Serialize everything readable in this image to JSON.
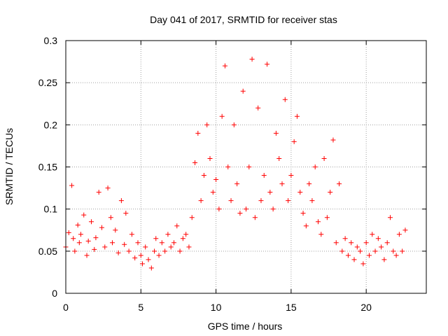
{
  "chart_data": {
    "type": "scatter",
    "title": "Day 041 of 2017, SRMTID for receiver stas",
    "xlabel": "GPS time / hours",
    "ylabel": "SRMTID / TECUs",
    "xlim": [
      0,
      24
    ],
    "ylim": [
      0,
      0.3
    ],
    "x_ticks": [
      0,
      5,
      10,
      15,
      20
    ],
    "x_tick_labels": [
      "0",
      "5",
      "10",
      "15",
      "20"
    ],
    "y_ticks": [
      0,
      0.05,
      0.1,
      0.15,
      0.2,
      0.25,
      0.3
    ],
    "y_tick_labels": [
      "0",
      "0.05",
      "0.1",
      "0.15",
      "0.2",
      "0.25",
      "0.3"
    ],
    "grid": true,
    "marker": "+",
    "series": [
      {
        "name": "stas",
        "color": "#ff0000",
        "x": [
          0.0,
          0.2,
          0.4,
          0.5,
          0.6,
          0.8,
          0.9,
          1.0,
          1.2,
          1.4,
          1.5,
          1.7,
          1.9,
          2.0,
          2.2,
          2.4,
          2.6,
          2.8,
          3.0,
          3.1,
          3.3,
          3.5,
          3.7,
          3.9,
          4.0,
          4.2,
          4.4,
          4.6,
          4.8,
          5.0,
          5.1,
          5.3,
          5.5,
          5.7,
          5.9,
          6.0,
          6.2,
          6.4,
          6.6,
          6.8,
          7.0,
          7.2,
          7.4,
          7.6,
          7.8,
          8.0,
          8.2,
          8.4,
          8.6,
          8.8,
          9.0,
          9.2,
          9.4,
          9.6,
          9.8,
          10.0,
          10.2,
          10.4,
          10.6,
          10.8,
          11.0,
          11.2,
          11.4,
          11.6,
          11.8,
          12.0,
          12.2,
          12.4,
          12.6,
          12.8,
          13.0,
          13.2,
          13.4,
          13.6,
          13.8,
          14.0,
          14.2,
          14.4,
          14.6,
          14.8,
          15.0,
          15.2,
          15.4,
          15.6,
          15.8,
          16.0,
          16.2,
          16.4,
          16.6,
          16.8,
          17.0,
          17.2,
          17.4,
          17.6,
          17.8,
          18.0,
          18.2,
          18.4,
          18.6,
          18.8,
          19.0,
          19.2,
          19.4,
          19.6,
          19.8,
          20.0,
          20.2,
          20.4,
          20.6,
          20.8,
          21.0,
          21.2,
          21.4,
          21.6,
          21.8,
          22.0,
          22.2,
          22.4,
          22.6
        ],
        "y": [
          0.055,
          0.072,
          0.128,
          0.065,
          0.05,
          0.081,
          0.06,
          0.07,
          0.093,
          0.045,
          0.062,
          0.085,
          0.052,
          0.066,
          0.12,
          0.078,
          0.055,
          0.125,
          0.09,
          0.06,
          0.075,
          0.048,
          0.11,
          0.058,
          0.095,
          0.05,
          0.07,
          0.042,
          0.06,
          0.045,
          0.035,
          0.055,
          0.04,
          0.03,
          0.05,
          0.065,
          0.045,
          0.06,
          0.05,
          0.07,
          0.055,
          0.06,
          0.08,
          0.05,
          0.065,
          0.07,
          0.055,
          0.09,
          0.155,
          0.19,
          0.11,
          0.14,
          0.2,
          0.16,
          0.12,
          0.135,
          0.1,
          0.21,
          0.27,
          0.15,
          0.11,
          0.2,
          0.13,
          0.095,
          0.24,
          0.1,
          0.15,
          0.278,
          0.09,
          0.22,
          0.11,
          0.14,
          0.272,
          0.12,
          0.1,
          0.19,
          0.16,
          0.13,
          0.23,
          0.11,
          0.14,
          0.18,
          0.21,
          0.12,
          0.095,
          0.08,
          0.13,
          0.11,
          0.15,
          0.085,
          0.07,
          0.16,
          0.09,
          0.12,
          0.182,
          0.06,
          0.13,
          0.05,
          0.065,
          0.045,
          0.06,
          0.04,
          0.055,
          0.05,
          0.035,
          0.06,
          0.045,
          0.07,
          0.05,
          0.065,
          0.055,
          0.04,
          0.06,
          0.09,
          0.05,
          0.045,
          0.07,
          0.05,
          0.075
        ]
      }
    ]
  }
}
